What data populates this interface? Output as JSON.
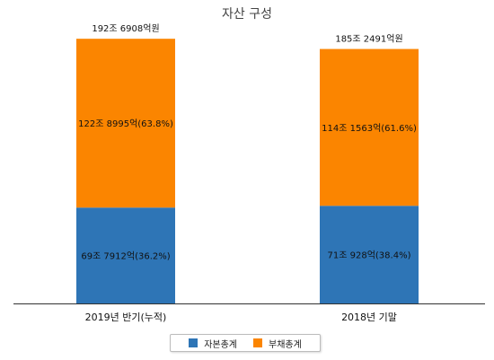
{
  "chart_data": {
    "type": "bar",
    "stacked": true,
    "title": "자산 구성",
    "categories": [
      "2019년 반기(누적)",
      "2018년 기말"
    ],
    "totals": [
      1926908,
      1852491
    ],
    "total_labels": [
      "192조 6908억원",
      "185조 2491억원"
    ],
    "series": [
      {
        "name": "자본총계",
        "color": "#2e75b6",
        "values": [
          697912,
          710928
        ],
        "labels": [
          "69조 7912억(36.2%)",
          "71조 928억(38.4%)"
        ]
      },
      {
        "name": "부채총계",
        "color": "#fb8500",
        "values": [
          1228995,
          1141563
        ],
        "labels": [
          "122조 8995억(63.8%)",
          "114조 1563억(61.6%)"
        ]
      }
    ],
    "ylim": [
      0,
      2000000
    ],
    "grid": false,
    "legend": "bottom"
  }
}
